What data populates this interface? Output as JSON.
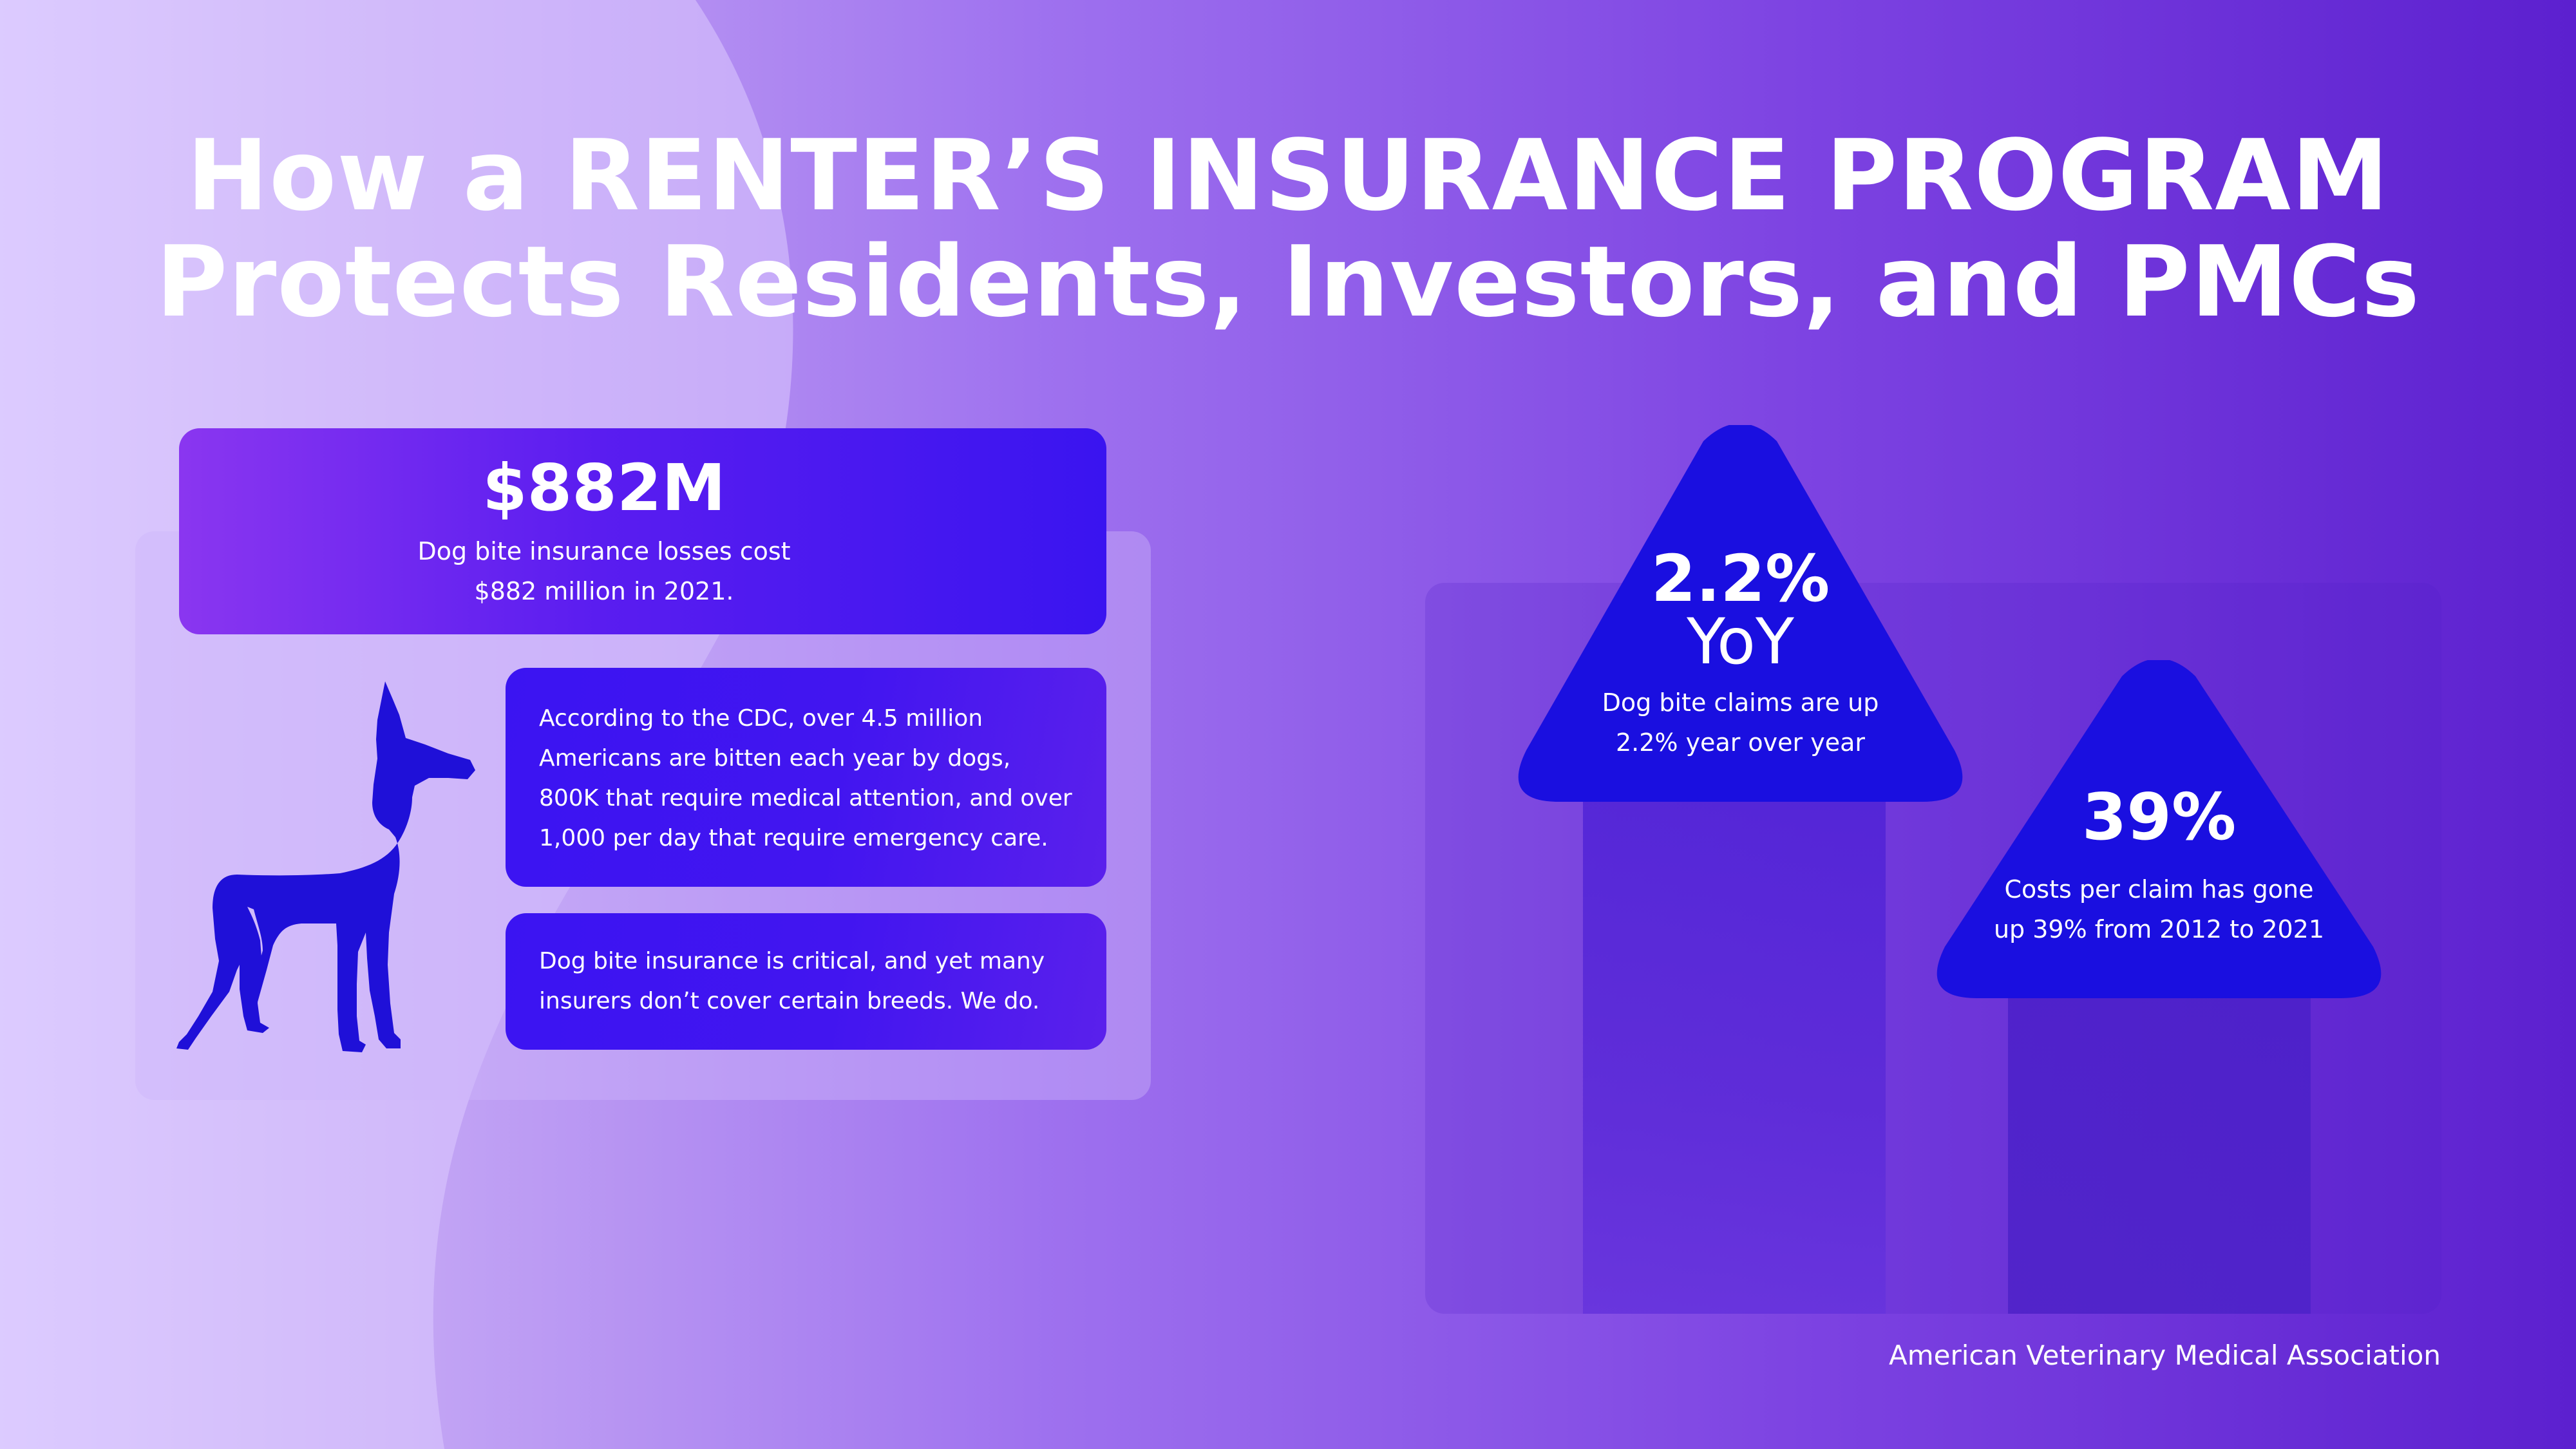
{
  "title": {
    "line1": "How a RENTER’S INSURANCE PROGRAM",
    "line2": "Protects Residents, Investors, and PMCs"
  },
  "left_panel": {
    "stat": {
      "value": "$882M",
      "caption": "Dog bite insurance losses cost $882 million in 2021."
    },
    "dog_icon": "dog-silhouette-icon",
    "card_1": "According to the CDC, over 4.5 million Americans are bitten each year by dogs, 800K that require medical attention, and over 1,000 per day that require emergency care.",
    "card_2": "Dog bite insurance is critical, and yet many insurers don’t cover certain breeds. We do."
  },
  "right_panel": {
    "arrow_1": {
      "value": "2.2%",
      "unit": "YoY",
      "caption": "Dog bite claims are up 2.2% year over year"
    },
    "arrow_2": {
      "value": "39%",
      "caption": "Costs per claim has gone up 39% from 2012 to 2021"
    }
  },
  "source": "American Veterinary Medical Association",
  "colors": {
    "card_blue": "#3b14f2",
    "arrow_blue": "#1a0fe0",
    "accent_purple": "#8a36f0"
  }
}
